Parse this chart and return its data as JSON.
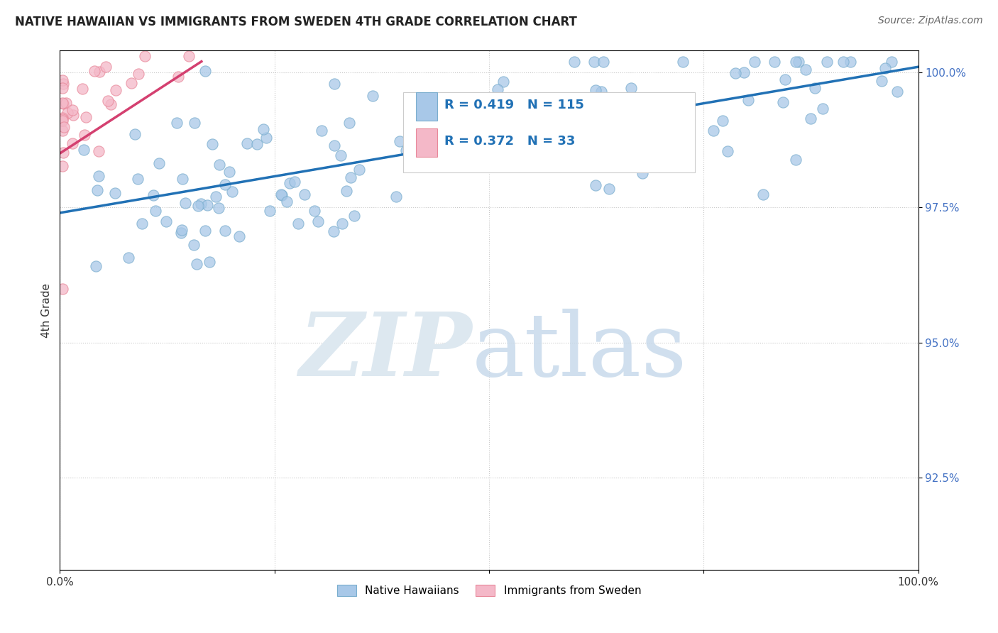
{
  "title": "NATIVE HAWAIIAN VS IMMIGRANTS FROM SWEDEN 4TH GRADE CORRELATION CHART",
  "source": "Source: ZipAtlas.com",
  "ylabel": "4th Grade",
  "xlim": [
    0,
    1
  ],
  "ylim": [
    0.908,
    1.004
  ],
  "yticks": [
    0.925,
    0.95,
    0.975,
    1.0
  ],
  "ytick_labels": [
    "92.5%",
    "95.0%",
    "97.5%",
    "100.0%"
  ],
  "xtick_labels": [
    "0.0%",
    "",
    "",
    "",
    "100.0%"
  ],
  "blue_R": 0.419,
  "blue_N": 115,
  "pink_R": 0.372,
  "pink_N": 33,
  "blue_color": "#a8c8e8",
  "blue_edge_color": "#7aaece",
  "pink_color": "#f4b8c8",
  "pink_edge_color": "#e8889a",
  "blue_line_color": "#2171b5",
  "pink_line_color": "#d44070",
  "legend_label_blue": "Native Hawaiians",
  "legend_label_pink": "Immigrants from Sweden",
  "background_color": "#ffffff",
  "marker_size": 120,
  "blue_line_start_y": 0.974,
  "blue_line_end_y": 1.001,
  "pink_line_start_x": 0.0,
  "pink_line_start_y": 0.985,
  "pink_line_end_x": 0.165,
  "pink_line_end_y": 1.002
}
